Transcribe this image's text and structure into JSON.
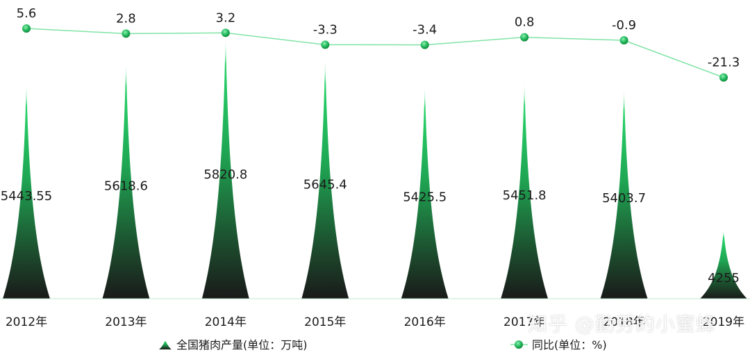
{
  "chart_data": {
    "type": "bar",
    "categories": [
      "2012年",
      "2013年",
      "2014年",
      "2015年",
      "2016年",
      "2017年",
      "2018年",
      "2019年"
    ],
    "series": [
      {
        "name": "全国猪肉产量(单位：万吨)",
        "kind": "bar",
        "color": "#1b9e4b",
        "values": [
          5443.55,
          5618.6,
          5820.8,
          5645.4,
          5425.5,
          5451.8,
          5403.7,
          4255
        ],
        "labels": [
          "5443.55",
          "5618.6",
          "5820.8",
          "5645.4",
          "5425.5",
          "5451.8",
          "5403.7",
          "4255"
        ]
      },
      {
        "name": "同比(单位：%)",
        "kind": "line",
        "color": "#2ecc71",
        "values": [
          5.6,
          2.8,
          3.2,
          -3.3,
          -3.4,
          0.8,
          -0.9,
          -21.3
        ],
        "labels": [
          "5.6",
          "2.8",
          "3.2",
          "-3.3",
          "-3.4",
          "0.8",
          "-0.9",
          "-21.3"
        ]
      }
    ],
    "legend": "bottom",
    "grid": false
  },
  "watermark": "知乎 @勤劳的小蜜蜂"
}
